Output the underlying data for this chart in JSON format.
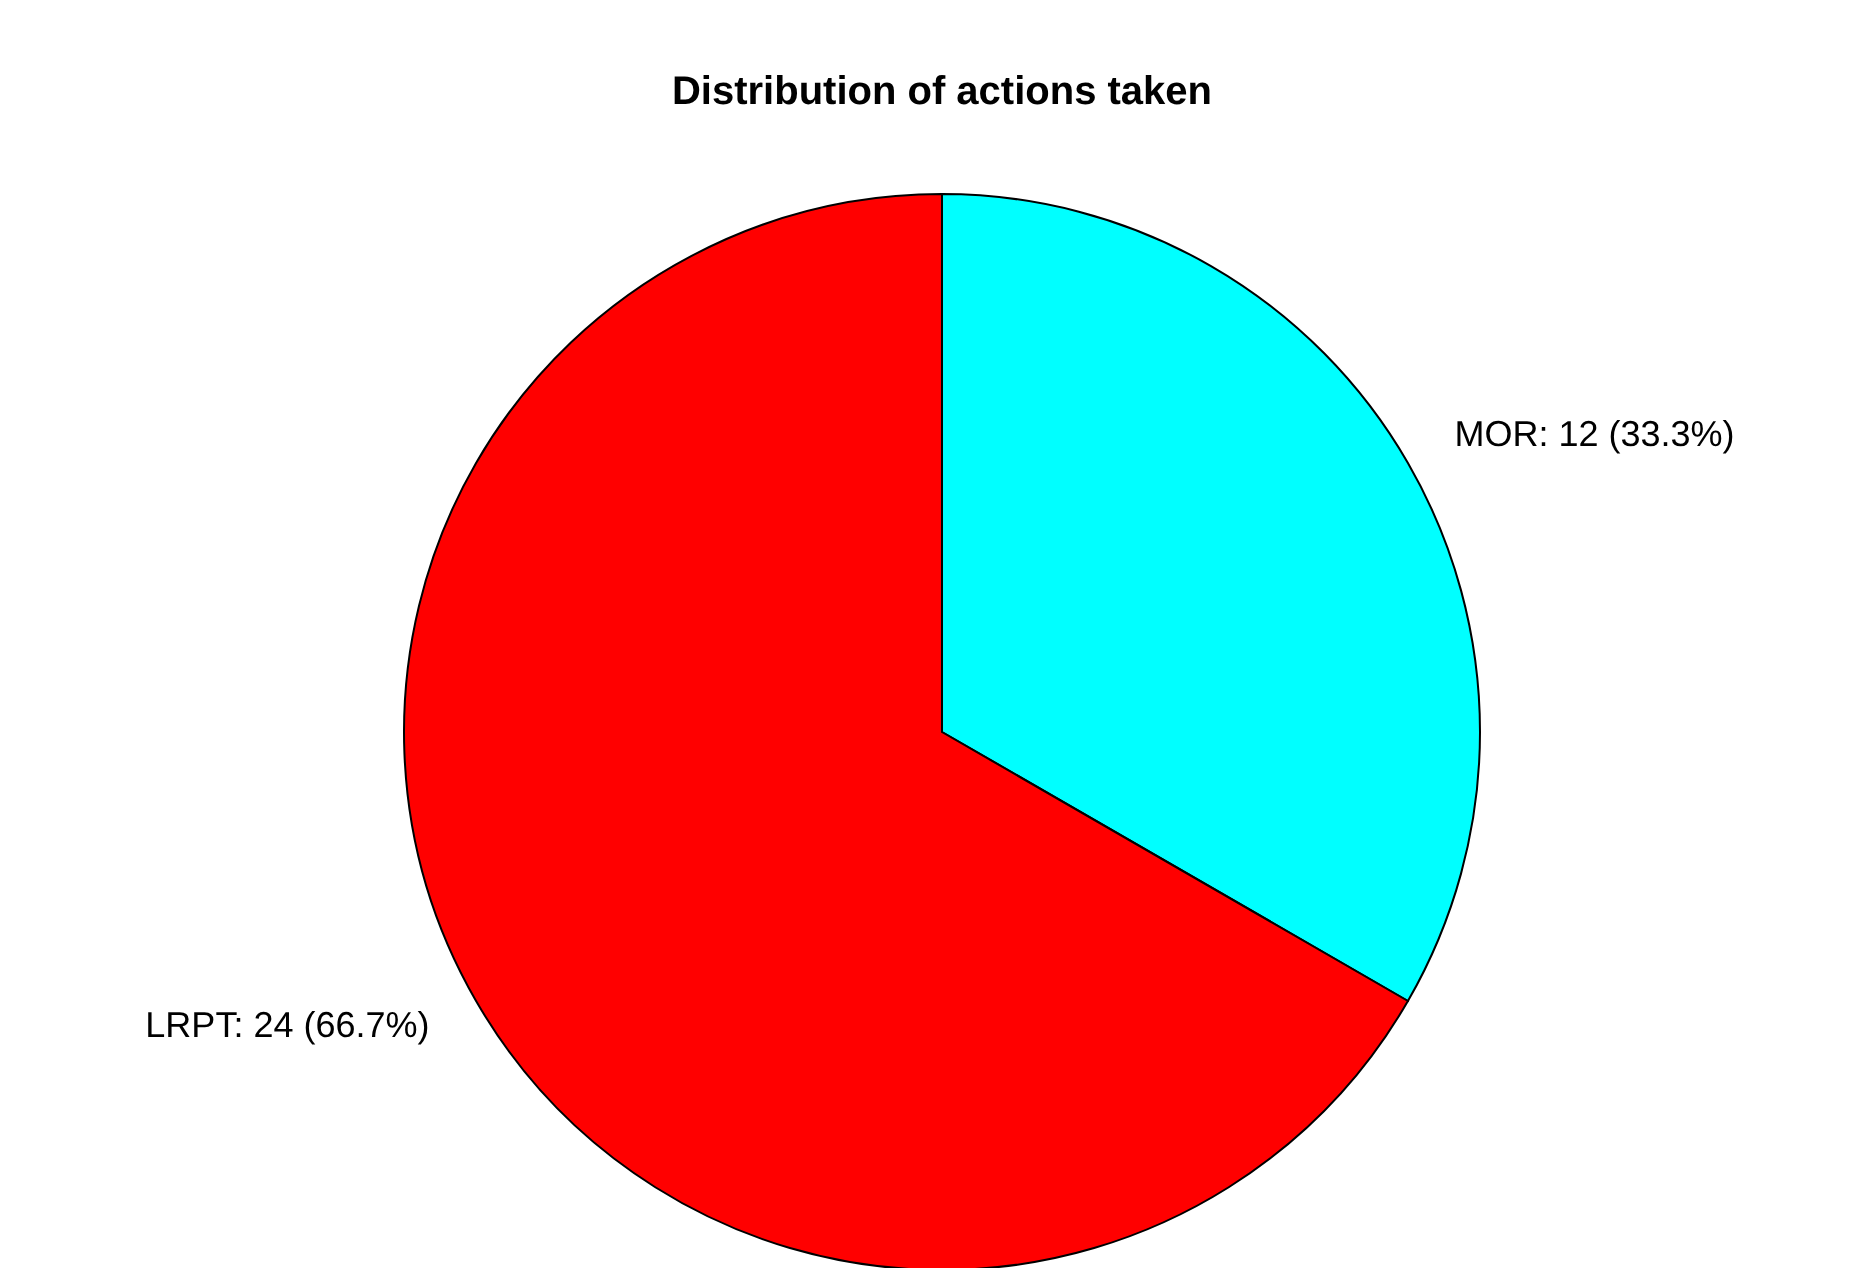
{
  "chart_data": {
    "type": "pie",
    "title": "Distribution of actions taken",
    "categories": [
      "MOR",
      "LRPT"
    ],
    "values": [
      12,
      24
    ],
    "colors": [
      "#00ffff",
      "#ff0000"
    ],
    "value_labels": [
      "12 (33.3%)",
      "24 (66.7%)"
    ],
    "legend": false
  }
}
